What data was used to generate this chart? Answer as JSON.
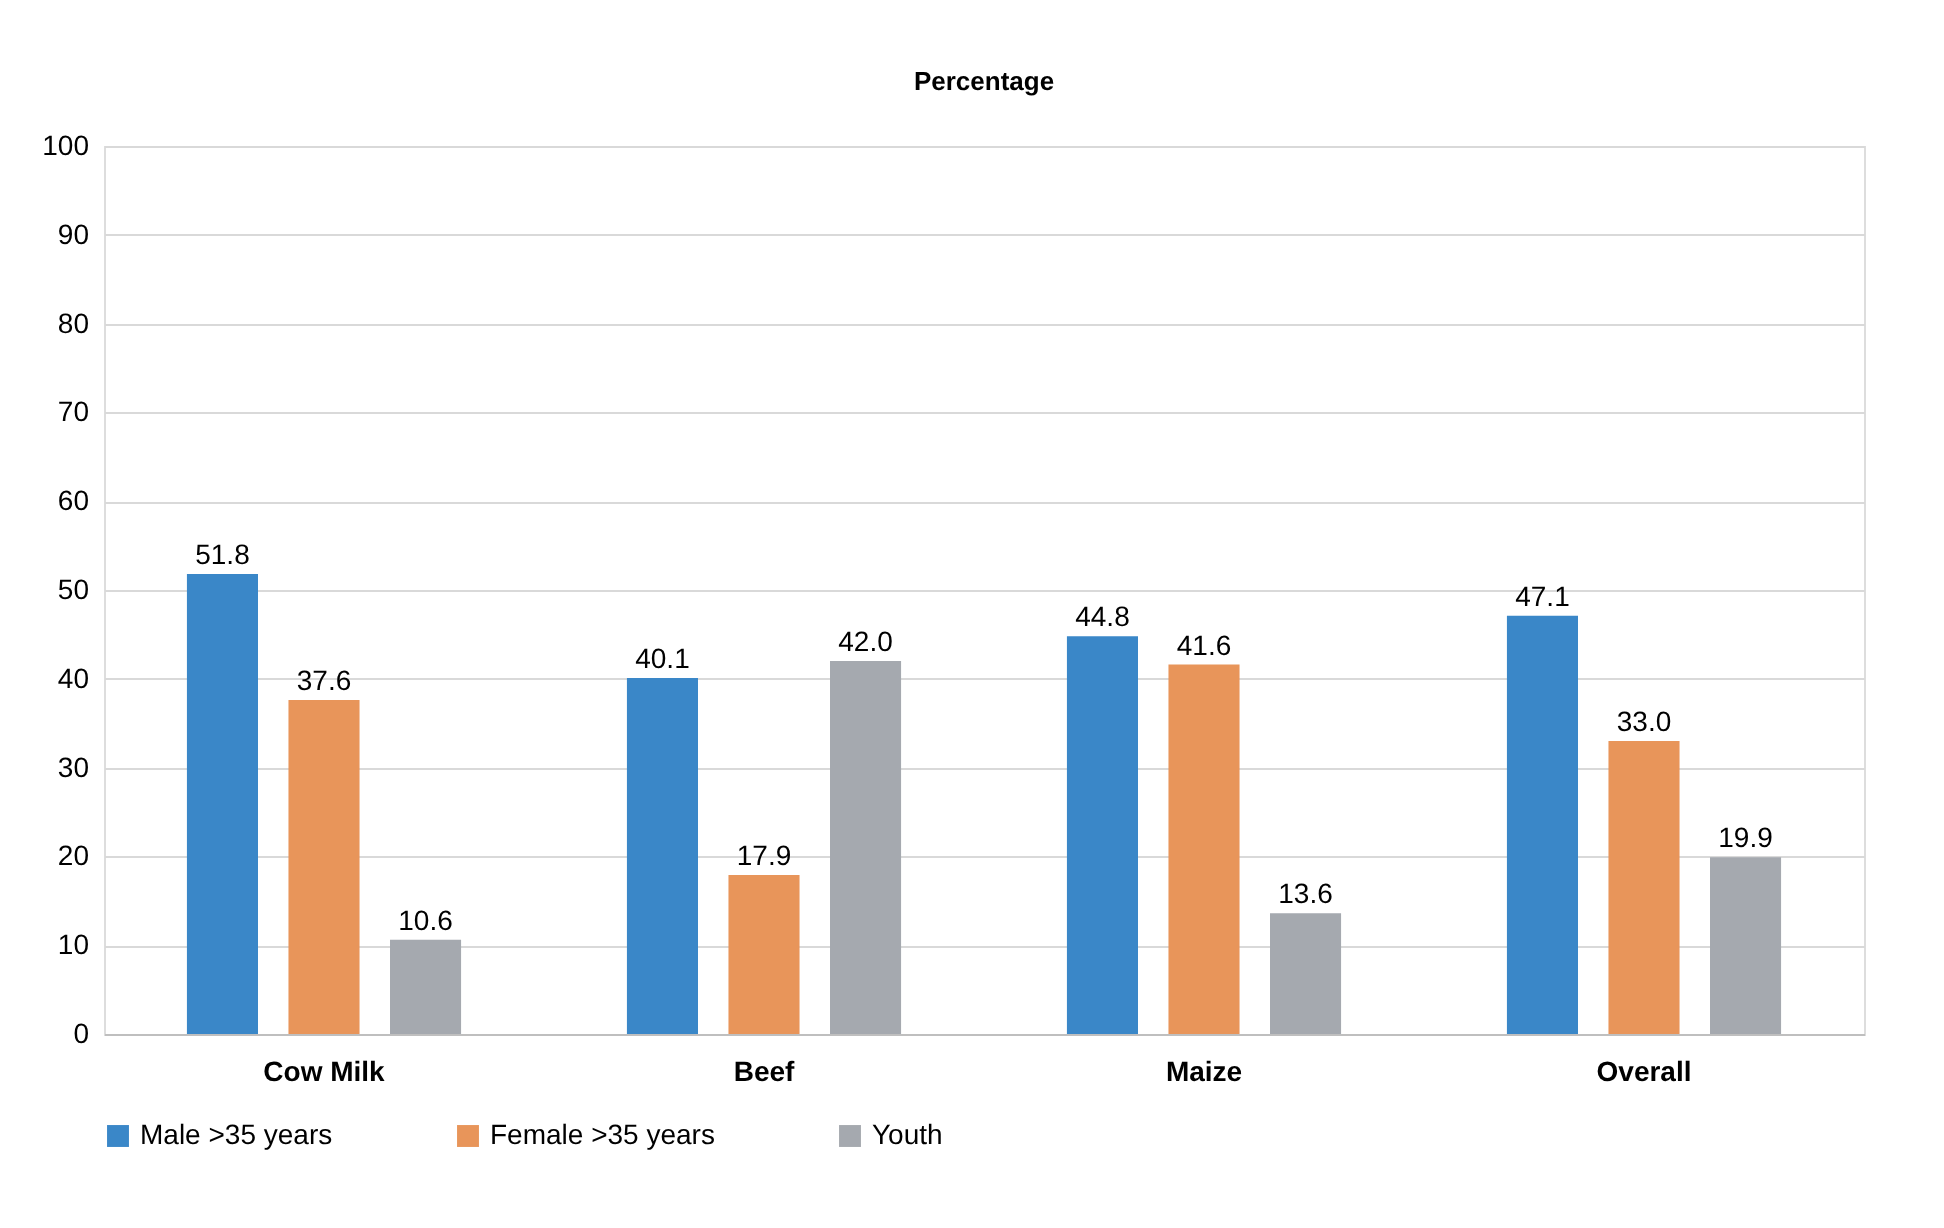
{
  "chart_data": {
    "type": "bar",
    "title": "Percentage",
    "categories": [
      "Cow Milk",
      "Beef",
      "Maize",
      "Overall"
    ],
    "series": [
      {
        "name": "Male >35 years",
        "color": "#3a87c8",
        "values": [
          51.8,
          40.1,
          44.8,
          47.1
        ],
        "value_labels": [
          "51.8",
          "40.1",
          "44.8",
          "47.1"
        ]
      },
      {
        "name": "Female >35 years",
        "color": "#e8955a",
        "values": [
          37.6,
          17.9,
          41.6,
          33.0
        ],
        "value_labels": [
          "37.6",
          "17.9",
          "41.6",
          "33.0"
        ]
      },
      {
        "name": "Youth",
        "color": "#a5a9af",
        "values": [
          10.6,
          42.0,
          13.6,
          19.9
        ],
        "value_labels": [
          "10.6",
          "42.0",
          "13.6",
          "19.9"
        ]
      }
    ],
    "ylim": [
      0,
      100
    ],
    "yticks": [
      0,
      10,
      20,
      30,
      40,
      50,
      60,
      70,
      80,
      90,
      100
    ],
    "grid": "y",
    "legend": "bottom"
  }
}
